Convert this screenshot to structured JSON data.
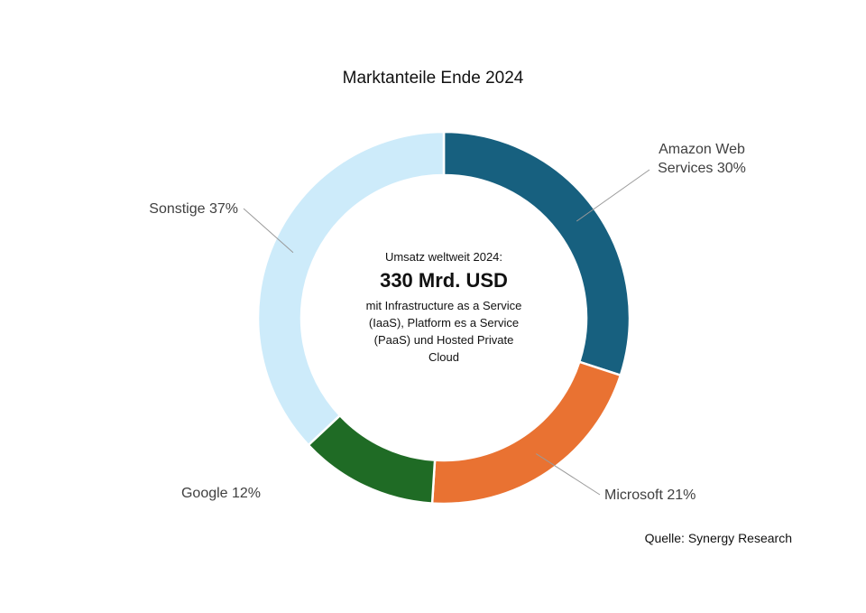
{
  "chart_data": {
    "type": "pie",
    "variant": "donut",
    "title": "Marktanteile Ende 2024",
    "slices": [
      {
        "name": "Amazon Web Services",
        "label_lines": [
          "Amazon Web",
          "Services 30%"
        ],
        "value": 30,
        "color": "#17607f"
      },
      {
        "name": "Microsoft",
        "label_lines": [
          "Microsoft 21%"
        ],
        "value": 21,
        "color": "#e97232"
      },
      {
        "name": "Google",
        "label_lines": [
          "Google 12%"
        ],
        "value": 12,
        "color": "#1f6b25"
      },
      {
        "name": "Sonstige",
        "label_lines": [
          "Sonstige 37%"
        ],
        "value": 37,
        "color": "#cdebfa"
      }
    ],
    "center": {
      "line1": "Umsatz weltweit 2024:",
      "headline": "330 Mrd. USD",
      "description": "mit Infrastructure as a Service (IaaS), Platform es a Service (PaaS) und Hosted Private Cloud"
    },
    "source": "Quelle: Synergy Research"
  }
}
